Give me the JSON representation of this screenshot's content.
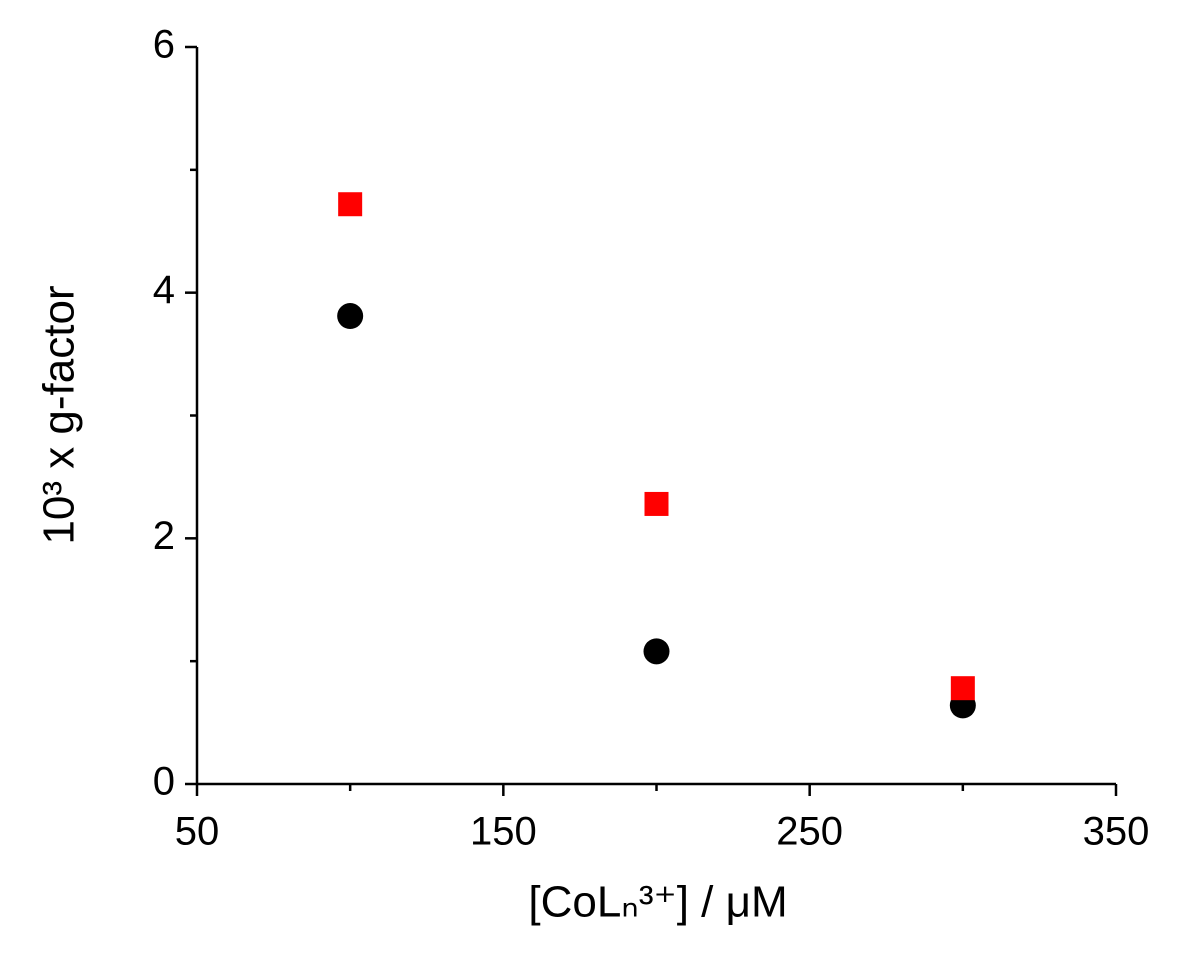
{
  "chart_data": {
    "type": "scatter",
    "x_label": "[CoLₙ³⁺] / μM",
    "y_label": "10³ x g-factor",
    "x": [
      100,
      200,
      300
    ],
    "series": [
      {
        "color": "#000000",
        "marker": "circle",
        "values": [
          3.81,
          1.08,
          0.64
        ]
      },
      {
        "color": "#ff0000",
        "marker": "square",
        "values": [
          4.72,
          2.28,
          0.78
        ]
      }
    ],
    "xlim": [
      50,
      350
    ],
    "xticks": [
      50,
      150,
      250,
      350
    ],
    "xminorticks": [
      100,
      200,
      300
    ],
    "ylim": [
      0,
      6
    ],
    "yticks": [
      0,
      2,
      4,
      6
    ],
    "yminorticks": [
      1,
      3,
      5
    ],
    "grid": false
  }
}
